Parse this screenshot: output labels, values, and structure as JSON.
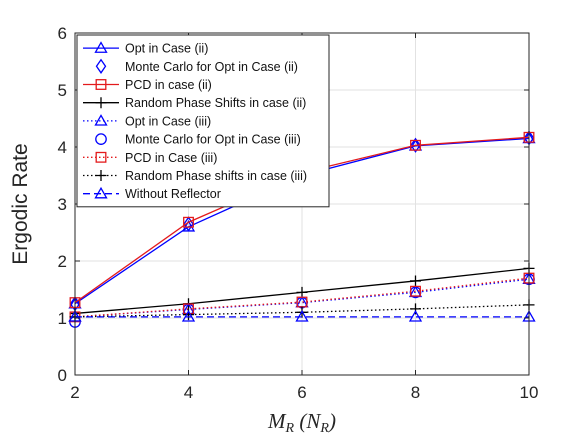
{
  "chart_data": {
    "type": "line",
    "xlabel": "M_R (N_R)",
    "xlabel_parts": {
      "m": "M",
      "m_sub": "R",
      "n": "N",
      "n_sub": "R"
    },
    "ylabel": "Ergodic Rate",
    "xlim": [
      2,
      10
    ],
    "ylim": [
      0,
      6
    ],
    "xticks": [
      2,
      4,
      6,
      8,
      10
    ],
    "yticks": [
      0,
      1,
      2,
      3,
      4,
      5,
      6
    ],
    "grid": true,
    "legend_position": "top-left",
    "x": [
      2,
      4,
      6,
      8,
      10
    ],
    "series": [
      {
        "name": "Opt in Case (ii)",
        "values": [
          1.25,
          2.6,
          3.5,
          4.02,
          4.15
        ],
        "color": "#0000ff",
        "line": "solid",
        "marker": "triangle",
        "legend_line": true
      },
      {
        "name": "Monte Carlo for Opt in Case (ii)",
        "values": [
          1.25,
          2.65,
          3.5,
          4.03,
          4.16
        ],
        "color": "#0000ff",
        "line": "none",
        "marker": "diamond",
        "legend_line": false
      },
      {
        "name": "PCD in case (ii)",
        "values": [
          1.27,
          2.68,
          3.55,
          4.03,
          4.17
        ],
        "color": "#e31a1c",
        "line": "solid",
        "marker": "square",
        "legend_line": true
      },
      {
        "name": "Random Phase Shifts in case (ii)",
        "values": [
          1.08,
          1.25,
          1.45,
          1.65,
          1.87
        ],
        "color": "#000000",
        "line": "solid",
        "marker": "plus",
        "legend_line": true
      },
      {
        "name": "Opt in Case (iii)",
        "values": [
          1.02,
          1.15,
          1.27,
          1.45,
          1.68
        ],
        "color": "#0000ff",
        "line": "dotted",
        "marker": "triangle",
        "legend_line": true
      },
      {
        "name": "Monte Carlo for Opt in Case (iii)",
        "values": [
          0.93,
          1.15,
          1.27,
          1.45,
          1.68
        ],
        "color": "#0000ff",
        "line": "none",
        "marker": "circle",
        "legend_line": false
      },
      {
        "name": "PCD in Case (iii)",
        "values": [
          1.02,
          1.16,
          1.28,
          1.47,
          1.7
        ],
        "color": "#e31a1c",
        "line": "dotted",
        "marker": "square",
        "legend_line": true
      },
      {
        "name": "Random Phase shifts in case (iii)",
        "values": [
          1.02,
          1.06,
          1.1,
          1.16,
          1.23
        ],
        "color": "#000000",
        "line": "dotted",
        "marker": "plus",
        "legend_line": true
      },
      {
        "name": "Without Reflector",
        "values": [
          1.02,
          1.02,
          1.02,
          1.02,
          1.02
        ],
        "color": "#0000ff",
        "line": "dashed",
        "marker": "triangle",
        "legend_line": true
      }
    ]
  }
}
